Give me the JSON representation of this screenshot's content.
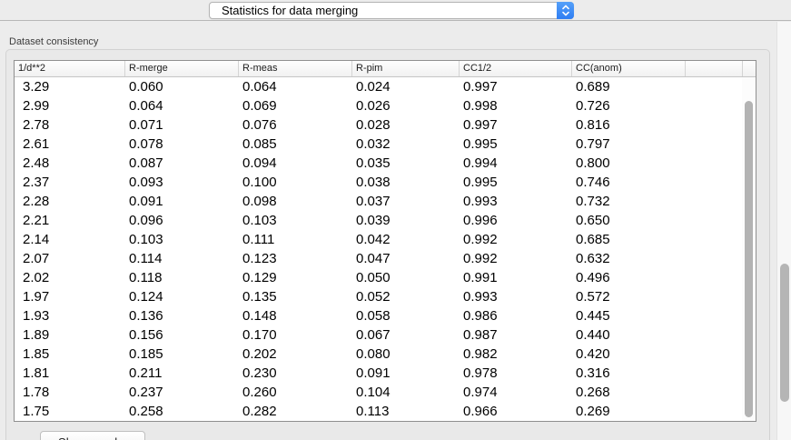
{
  "toolbar": {
    "mode_popup": {
      "selected": "Statistics for data merging"
    }
  },
  "panel": {
    "title": "Dataset consistency"
  },
  "table": {
    "columns": [
      "1/d**2",
      "R-merge",
      "R-meas",
      "R-pim",
      "CC1/2",
      "CC(anom)"
    ],
    "rows": [
      [
        "3.29",
        "0.060",
        "0.064",
        "0.024",
        "0.997",
        "0.689"
      ],
      [
        "2.99",
        "0.064",
        "0.069",
        "0.026",
        "0.998",
        "0.726"
      ],
      [
        "2.78",
        "0.071",
        "0.076",
        "0.028",
        "0.997",
        "0.816"
      ],
      [
        "2.61",
        "0.078",
        "0.085",
        "0.032",
        "0.995",
        "0.797"
      ],
      [
        "2.48",
        "0.087",
        "0.094",
        "0.035",
        "0.994",
        "0.800"
      ],
      [
        "2.37",
        "0.093",
        "0.100",
        "0.038",
        "0.995",
        "0.746"
      ],
      [
        "2.28",
        "0.091",
        "0.098",
        "0.037",
        "0.993",
        "0.732"
      ],
      [
        "2.21",
        "0.096",
        "0.103",
        "0.039",
        "0.996",
        "0.650"
      ],
      [
        "2.14",
        "0.103",
        "0.111",
        "0.042",
        "0.992",
        "0.685"
      ],
      [
        "2.07",
        "0.114",
        "0.123",
        "0.047",
        "0.992",
        "0.632"
      ],
      [
        "2.02",
        "0.118",
        "0.129",
        "0.050",
        "0.991",
        "0.496"
      ],
      [
        "1.97",
        "0.124",
        "0.135",
        "0.052",
        "0.993",
        "0.572"
      ],
      [
        "1.93",
        "0.136",
        "0.148",
        "0.058",
        "0.986",
        "0.445"
      ],
      [
        "1.89",
        "0.156",
        "0.170",
        "0.067",
        "0.987",
        "0.440"
      ],
      [
        "1.85",
        "0.185",
        "0.202",
        "0.080",
        "0.982",
        "0.420"
      ],
      [
        "1.81",
        "0.211",
        "0.230",
        "0.091",
        "0.978",
        "0.316"
      ],
      [
        "1.78",
        "0.237",
        "0.260",
        "0.104",
        "0.974",
        "0.268"
      ],
      [
        "1.75",
        "0.258",
        "0.282",
        "0.113",
        "0.966",
        "0.269"
      ]
    ]
  },
  "buttons": {
    "show_graphs": "Show graphs"
  },
  "colors": {
    "popup_accent": "#2f7ef3"
  }
}
